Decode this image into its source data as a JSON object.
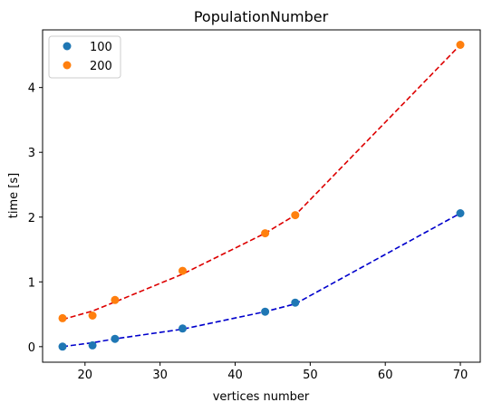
{
  "chart_data": {
    "type": "scatter",
    "title": "PopulationNumber",
    "xlabel": "vertices number",
    "ylabel": "time [s]",
    "xlim": [
      14.35,
      72.65
    ],
    "ylim": [
      -0.24,
      4.89
    ],
    "xticks": [
      20,
      30,
      40,
      50,
      60,
      70
    ],
    "yticks": [
      0,
      1,
      2,
      3,
      4
    ],
    "grid": false,
    "legend_position": "top-left",
    "series": [
      {
        "name": "100",
        "marker_color": "#1f77b4",
        "x": [
          17,
          21,
          24,
          33,
          44,
          48,
          70
        ],
        "y": [
          0.0,
          0.02,
          0.12,
          0.28,
          0.54,
          0.68,
          2.06
        ]
      },
      {
        "name": "200",
        "marker_color": "#ff7f0e",
        "x": [
          17,
          21,
          24,
          33,
          44,
          48,
          70
        ],
        "y": [
          0.44,
          0.48,
          0.72,
          1.17,
          1.75,
          2.03,
          4.66
        ]
      }
    ],
    "fit_lines": [
      {
        "color": "#0000cc",
        "style": "dashed",
        "x": [
          17,
          21,
          24,
          33,
          44,
          48,
          70
        ],
        "y": [
          0.0,
          0.06,
          0.12,
          0.27,
          0.54,
          0.66,
          2.06
        ]
      },
      {
        "color": "#dd0000",
        "style": "dashed",
        "x": [
          17,
          21,
          24,
          33,
          44,
          48,
          70
        ],
        "y": [
          0.42,
          0.55,
          0.69,
          1.12,
          1.75,
          2.03,
          4.66
        ]
      }
    ]
  }
}
